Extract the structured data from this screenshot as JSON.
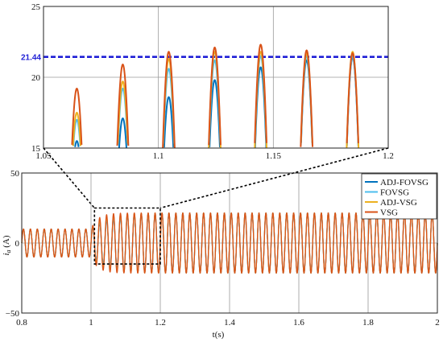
{
  "chart_data": [
    {
      "type": "line",
      "panel": "main",
      "xlabel": "t(s)",
      "ylabel": "i_a (A)",
      "ylabel_main": "i",
      "ylabel_sub": "a",
      "ylabel_unit": " (A)",
      "xlim": [
        0.8,
        2.0
      ],
      "ylim": [
        -50,
        50
      ],
      "xticks": [
        0.8,
        1,
        1.2,
        1.4,
        1.6,
        1.8,
        2
      ],
      "xtick_labels": [
        "0.8",
        "1",
        "1.2",
        "1.4",
        "1.6",
        "1.8",
        "2"
      ],
      "yticks": [
        -50,
        0,
        50
      ],
      "ytick_labels": [
        "−50",
        "0",
        "50"
      ],
      "grid": true,
      "legend_position": "top-right",
      "step_time": 1.0,
      "frequency_hz": 50,
      "amplitude_before": 10,
      "amplitude_after": 21.44,
      "series": [
        {
          "name": "ADJ-FOVSG",
          "color": "#0072BD",
          "peak_after": 21.44
        },
        {
          "name": "FOVSG",
          "color": "#4DBEEE",
          "peak_after": 21.44
        },
        {
          "name": "ADJ-VSG",
          "color": "#EDB120",
          "peak_after": 21.44
        },
        {
          "name": "VSG",
          "color": "#D95319",
          "peak_after": 21.44
        }
      ],
      "zoom_box": {
        "x": [
          1.01,
          1.2
        ],
        "y": [
          -15,
          25
        ]
      }
    },
    {
      "type": "line",
      "panel": "zoom",
      "xlim": [
        1.05,
        1.2
      ],
      "ylim": [
        15,
        25
      ],
      "xticks": [
        1.05,
        1.1,
        1.15,
        1.2
      ],
      "xtick_labels": [
        "1.05",
        "1.1",
        "1.15",
        "1.2"
      ],
      "yticks": [
        15,
        20,
        25
      ],
      "ytick_labels": [
        "15",
        "20",
        "25"
      ],
      "grid": true,
      "reference_line": {
        "value": 21.44,
        "label": "21.44",
        "color": "#1F1FD6"
      },
      "peak_times": [
        1.0645,
        1.0845,
        1.1045,
        1.1245,
        1.1445,
        1.1645,
        1.1845
      ],
      "series": [
        {
          "name": "ADJ-FOVSG",
          "color": "#0072BD",
          "peaks": [
            15.5,
            17.1,
            18.6,
            19.8,
            20.7,
            21.2,
            21.4
          ]
        },
        {
          "name": "FOVSG",
          "color": "#4DBEEE",
          "peaks": [
            17.0,
            19.2,
            20.6,
            21.2,
            21.5,
            21.5,
            21.5
          ]
        },
        {
          "name": "ADJ-VSG",
          "color": "#EDB120",
          "peaks": [
            17.5,
            19.7,
            21.3,
            21.8,
            21.8,
            21.7,
            21.8
          ]
        },
        {
          "name": "VSG",
          "color": "#D95319",
          "peaks": [
            19.2,
            20.9,
            21.8,
            22.1,
            22.3,
            21.9,
            21.7
          ]
        }
      ]
    }
  ]
}
